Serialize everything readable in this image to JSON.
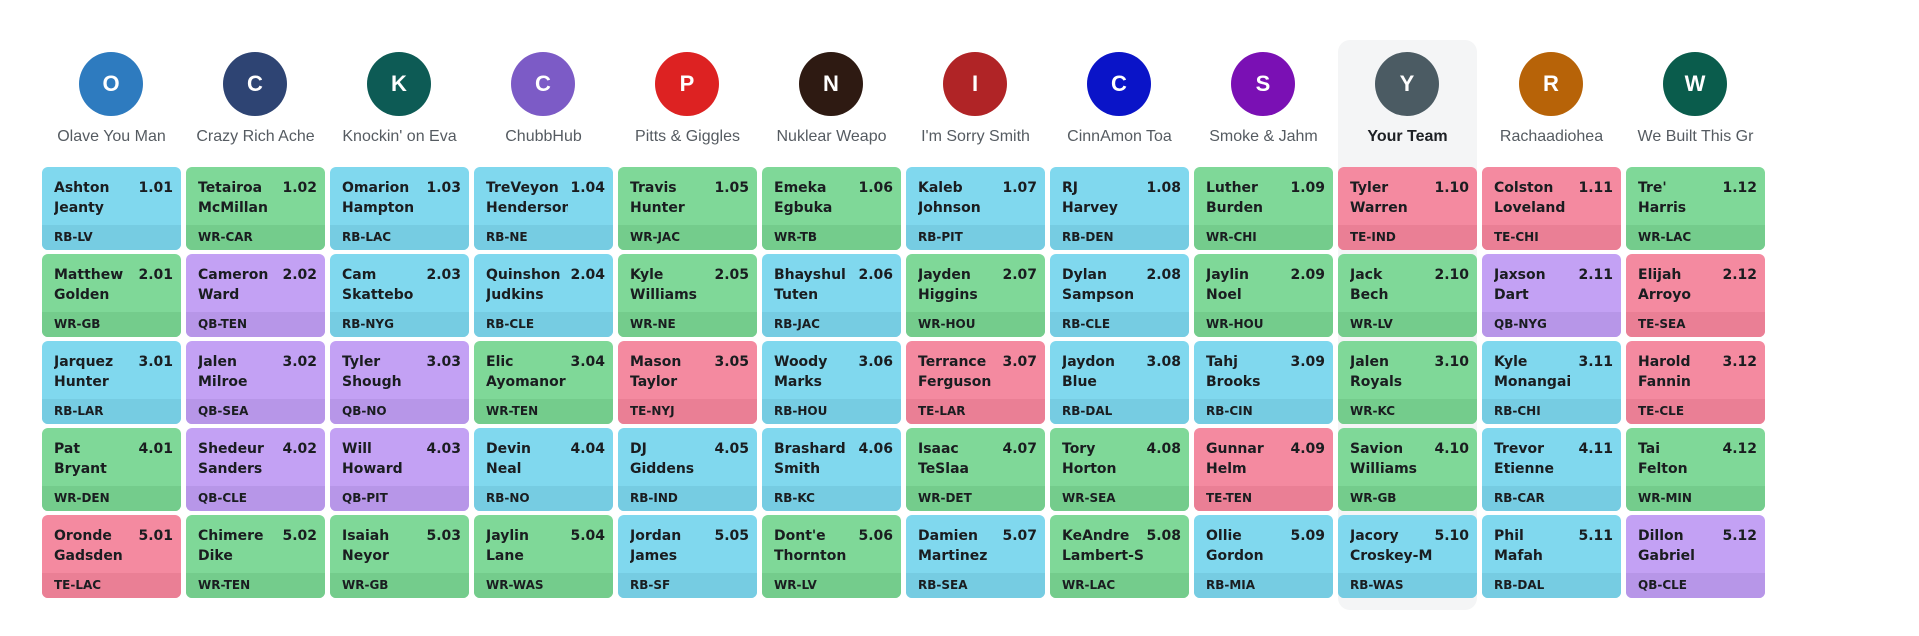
{
  "teams": [
    {
      "initial": "O",
      "name": "Olave You Man",
      "color": "#2e7bbf",
      "mine": false
    },
    {
      "initial": "C",
      "name": "Crazy Rich Ache",
      "color": "#2e4473",
      "mine": false
    },
    {
      "initial": "K",
      "name": "Knockin' on Eva",
      "color": "#0d5b55",
      "mine": false
    },
    {
      "initial": "C",
      "name": "ChubbHub",
      "color": "#7c5bc6",
      "mine": false
    },
    {
      "initial": "P",
      "name": "Pitts & Giggles",
      "color": "#dd2222",
      "mine": false
    },
    {
      "initial": "N",
      "name": "Nuklear Weapo",
      "color": "#2e1a12",
      "mine": false
    },
    {
      "initial": "I",
      "name": "I'm Sorry Smith",
      "color": "#b02426",
      "mine": false
    },
    {
      "initial": "C",
      "name": "CinnAmon Toa",
      "color": "#0a14c8",
      "mine": false
    },
    {
      "initial": "S",
      "name": "Smoke & Jahm",
      "color": "#7a10b4",
      "mine": false
    },
    {
      "initial": "Y",
      "name": "Your Team",
      "color": "#4b5b63",
      "mine": true
    },
    {
      "initial": "R",
      "name": "Rachaadiohea",
      "color": "#b76308",
      "mine": false
    },
    {
      "initial": "W",
      "name": "We Built This Gr",
      "color": "#0a5c4c",
      "mine": false
    }
  ],
  "rounds": [
    [
      {
        "first": "Ashton",
        "last": "Jeanty",
        "pick": "1.01",
        "pos": "RB",
        "team": "LV"
      },
      {
        "first": "Tetairoa",
        "last": "McMillan",
        "pick": "1.02",
        "pos": "WR",
        "team": "CAR"
      },
      {
        "first": "Omarion",
        "last": "Hampton",
        "pick": "1.03",
        "pos": "RB",
        "team": "LAC"
      },
      {
        "first": "TreVeyon",
        "last": "Henderson",
        "pick": "1.04",
        "pos": "RB",
        "team": "NE"
      },
      {
        "first": "Travis",
        "last": "Hunter",
        "pick": "1.05",
        "pos": "WR",
        "team": "JAC"
      },
      {
        "first": "Emeka",
        "last": "Egbuka",
        "pick": "1.06",
        "pos": "WR",
        "team": "TB"
      },
      {
        "first": "Kaleb",
        "last": "Johnson",
        "pick": "1.07",
        "pos": "RB",
        "team": "PIT"
      },
      {
        "first": "RJ",
        "last": "Harvey",
        "pick": "1.08",
        "pos": "RB",
        "team": "DEN"
      },
      {
        "first": "Luther",
        "last": "Burden",
        "pick": "1.09",
        "pos": "WR",
        "team": "CHI"
      },
      {
        "first": "Tyler",
        "last": "Warren",
        "pick": "1.10",
        "pos": "TE",
        "team": "IND"
      },
      {
        "first": "Colston",
        "last": "Loveland",
        "pick": "1.11",
        "pos": "TE",
        "team": "CHI"
      },
      {
        "first": "Tre'",
        "last": "Harris",
        "pick": "1.12",
        "pos": "WR",
        "team": "LAC"
      }
    ],
    [
      {
        "first": "Matthew",
        "last": "Golden",
        "pick": "2.01",
        "pos": "WR",
        "team": "GB"
      },
      {
        "first": "Cameron",
        "last": "Ward",
        "pick": "2.02",
        "pos": "QB",
        "team": "TEN"
      },
      {
        "first": "Cam",
        "last": "Skattebo",
        "pick": "2.03",
        "pos": "RB",
        "team": "NYG"
      },
      {
        "first": "Quinshon",
        "last": "Judkins",
        "pick": "2.04",
        "pos": "RB",
        "team": "CLE"
      },
      {
        "first": "Kyle",
        "last": "Williams",
        "pick": "2.05",
        "pos": "WR",
        "team": "NE"
      },
      {
        "first": "Bhayshul",
        "last": "Tuten",
        "pick": "2.06",
        "pos": "RB",
        "team": "JAC"
      },
      {
        "first": "Jayden",
        "last": "Higgins",
        "pick": "2.07",
        "pos": "WR",
        "team": "HOU"
      },
      {
        "first": "Dylan",
        "last": "Sampson",
        "pick": "2.08",
        "pos": "RB",
        "team": "CLE"
      },
      {
        "first": "Jaylin",
        "last": "Noel",
        "pick": "2.09",
        "pos": "WR",
        "team": "HOU"
      },
      {
        "first": "Jack",
        "last": "Bech",
        "pick": "2.10",
        "pos": "WR",
        "team": "LV"
      },
      {
        "first": "Jaxson",
        "last": "Dart",
        "pick": "2.11",
        "pos": "QB",
        "team": "NYG"
      },
      {
        "first": "Elijah",
        "last": "Arroyo",
        "pick": "2.12",
        "pos": "TE",
        "team": "SEA"
      }
    ],
    [
      {
        "first": "Jarquez",
        "last": "Hunter",
        "pick": "3.01",
        "pos": "RB",
        "team": "LAR"
      },
      {
        "first": "Jalen",
        "last": "Milroe",
        "pick": "3.02",
        "pos": "QB",
        "team": "SEA"
      },
      {
        "first": "Tyler",
        "last": "Shough",
        "pick": "3.03",
        "pos": "QB",
        "team": "NO"
      },
      {
        "first": "Elic",
        "last": "Ayomanor",
        "pick": "3.04",
        "pos": "WR",
        "team": "TEN"
      },
      {
        "first": "Mason",
        "last": "Taylor",
        "pick": "3.05",
        "pos": "TE",
        "team": "NYJ"
      },
      {
        "first": "Woody",
        "last": "Marks",
        "pick": "3.06",
        "pos": "RB",
        "team": "HOU"
      },
      {
        "first": "Terrance",
        "last": "Ferguson",
        "pick": "3.07",
        "pos": "TE",
        "team": "LAR"
      },
      {
        "first": "Jaydon",
        "last": "Blue",
        "pick": "3.08",
        "pos": "RB",
        "team": "DAL"
      },
      {
        "first": "Tahj",
        "last": "Brooks",
        "pick": "3.09",
        "pos": "RB",
        "team": "CIN"
      },
      {
        "first": "Jalen",
        "last": "Royals",
        "pick": "3.10",
        "pos": "WR",
        "team": "KC"
      },
      {
        "first": "Kyle",
        "last": "Monangai",
        "pick": "3.11",
        "pos": "RB",
        "team": "CHI"
      },
      {
        "first": "Harold",
        "last": "Fannin",
        "pick": "3.12",
        "pos": "TE",
        "team": "CLE"
      }
    ],
    [
      {
        "first": "Pat",
        "last": "Bryant",
        "pick": "4.01",
        "pos": "WR",
        "team": "DEN"
      },
      {
        "first": "Shedeur",
        "last": "Sanders",
        "pick": "4.02",
        "pos": "QB",
        "team": "CLE"
      },
      {
        "first": "Will",
        "last": "Howard",
        "pick": "4.03",
        "pos": "QB",
        "team": "PIT"
      },
      {
        "first": "Devin",
        "last": "Neal",
        "pick": "4.04",
        "pos": "RB",
        "team": "NO"
      },
      {
        "first": "DJ",
        "last": "Giddens",
        "pick": "4.05",
        "pos": "RB",
        "team": "IND"
      },
      {
        "first": "Brashard",
        "last": "Smith",
        "pick": "4.06",
        "pos": "RB",
        "team": "KC"
      },
      {
        "first": "Isaac",
        "last": "TeSlaa",
        "pick": "4.07",
        "pos": "WR",
        "team": "DET"
      },
      {
        "first": "Tory",
        "last": "Horton",
        "pick": "4.08",
        "pos": "WR",
        "team": "SEA"
      },
      {
        "first": "Gunnar",
        "last": "Helm",
        "pick": "4.09",
        "pos": "TE",
        "team": "TEN"
      },
      {
        "first": "Savion",
        "last": "Williams",
        "pick": "4.10",
        "pos": "WR",
        "team": "GB"
      },
      {
        "first": "Trevor",
        "last": "Etienne",
        "pick": "4.11",
        "pos": "RB",
        "team": "CAR"
      },
      {
        "first": "Tai",
        "last": "Felton",
        "pick": "4.12",
        "pos": "WR",
        "team": "MIN"
      }
    ],
    [
      {
        "first": "Oronde",
        "last": "Gadsden",
        "pick": "5.01",
        "pos": "TE",
        "team": "LAC"
      },
      {
        "first": "Chimere",
        "last": "Dike",
        "pick": "5.02",
        "pos": "WR",
        "team": "TEN"
      },
      {
        "first": "Isaiah",
        "last": "Neyor",
        "pick": "5.03",
        "pos": "WR",
        "team": "GB"
      },
      {
        "first": "Jaylin",
        "last": "Lane",
        "pick": "5.04",
        "pos": "WR",
        "team": "WAS"
      },
      {
        "first": "Jordan",
        "last": "James",
        "pick": "5.05",
        "pos": "RB",
        "team": "SF"
      },
      {
        "first": "Dont'e",
        "last": "Thornton",
        "pick": "5.06",
        "pos": "WR",
        "team": "LV"
      },
      {
        "first": "Damien",
        "last": "Martinez",
        "pick": "5.07",
        "pos": "RB",
        "team": "SEA"
      },
      {
        "first": "KeAndre",
        "last": "Lambert-S",
        "pick": "5.08",
        "pos": "WR",
        "team": "LAC"
      },
      {
        "first": "Ollie",
        "last": "Gordon",
        "pick": "5.09",
        "pos": "RB",
        "team": "MIA"
      },
      {
        "first": "Jacory",
        "last": "Croskey-M",
        "pick": "5.10",
        "pos": "RB",
        "team": "WAS"
      },
      {
        "first": "Phil",
        "last": "Mafah",
        "pick": "5.11",
        "pos": "RB",
        "team": "DAL"
      },
      {
        "first": "Dillon",
        "last": "Gabriel",
        "pick": "5.12",
        "pos": "QB",
        "team": "CLE"
      }
    ]
  ]
}
